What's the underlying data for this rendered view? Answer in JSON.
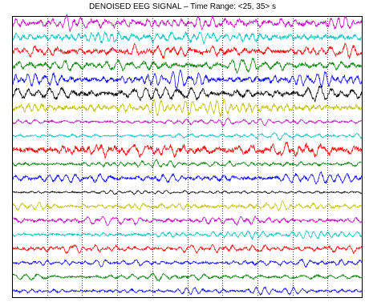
{
  "chart_data": {
    "type": "line",
    "title": "DENOISED EEG SIGNAL – Time Range: <25, 35> s",
    "xlim": [
      25,
      35
    ],
    "x_gridlines": [
      26,
      27,
      28,
      29,
      30,
      31,
      32,
      33,
      34
    ],
    "grid": "dotted vertical lines",
    "legend": "none",
    "axis_ticks": "none",
    "channel_count": 20,
    "colors": [
      "#c000c0",
      "#00c0c0",
      "#ff0000",
      "#008000",
      "#0000ff",
      "#000000",
      "#c0c000"
    ],
    "series": [
      {
        "color": "#c000c0",
        "relative_amplitude": 0.85
      },
      {
        "color": "#00c0c0",
        "relative_amplitude": 0.8
      },
      {
        "color": "#ff0000",
        "relative_amplitude": 0.85
      },
      {
        "color": "#008000",
        "relative_amplitude": 0.75
      },
      {
        "color": "#0000ff",
        "relative_amplitude": 0.8
      },
      {
        "color": "#000000",
        "relative_amplitude": 0.85
      },
      {
        "color": "#c0c000",
        "relative_amplitude": 0.8
      },
      {
        "color": "#c000c0",
        "relative_amplitude": 0.35
      },
      {
        "color": "#00c0c0",
        "relative_amplitude": 0.35
      },
      {
        "color": "#ff0000",
        "relative_amplitude": 1.0
      },
      {
        "color": "#008000",
        "relative_amplitude": 0.4
      },
      {
        "color": "#0000ff",
        "relative_amplitude": 0.6
      },
      {
        "color": "#000000",
        "relative_amplitude": 0.25
      },
      {
        "color": "#c0c000",
        "relative_amplitude": 0.5
      },
      {
        "color": "#c000c0",
        "relative_amplitude": 0.5
      },
      {
        "color": "#00c0c0",
        "relative_amplitude": 0.4
      },
      {
        "color": "#ff0000",
        "relative_amplitude": 0.5
      },
      {
        "color": "#0000ff",
        "relative_amplitude": 0.4
      },
      {
        "color": "#008000",
        "relative_amplitude": 0.4
      },
      {
        "color": "#0000ff",
        "relative_amplitude": 0.4
      }
    ]
  }
}
